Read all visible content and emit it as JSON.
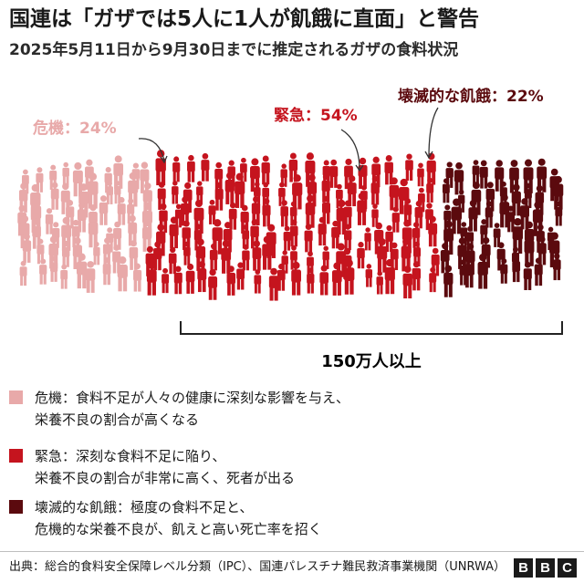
{
  "header": {
    "title": "国連は「ガザでは5人に1人が飢餓に直面」と警告",
    "subtitle": "2025年5月11日から9月30日までに推定されるガザの食料状況"
  },
  "chart_data": {
    "type": "pictogram",
    "total_label": "150万人以上",
    "categories": [
      {
        "key": "crisis",
        "label": "危機：24%",
        "value": 24,
        "color": "#e8a9a9"
      },
      {
        "key": "emergency",
        "label": "緊急：54%",
        "value": 54,
        "color": "#c5141e"
      },
      {
        "key": "catastrophe",
        "label": "壊滅的な飢餓：22%",
        "value": 22,
        "color": "#5b0a0e"
      }
    ]
  },
  "legend": {
    "items": [
      {
        "color": "#e8a9a9",
        "line1": "危機：食料不足が人々の健康に深刻な影響を与え、",
        "line2": "栄養不良の割合が高くなる"
      },
      {
        "color": "#c5141e",
        "line1": "緊急：深刻な食料不足に陥り、",
        "line2": "栄養不良の割合が非常に高く、死者が出る"
      },
      {
        "color": "#5b0a0e",
        "line1": "壊滅的な飢餓：極度の食料不足と、",
        "line2": "危機的な栄養不良が、飢えと高い死亡率を招く"
      }
    ]
  },
  "footer": {
    "source": "出典：総合的食料安全保障レベル分類（IPC）、国連パレスチナ難民救済事業機関（UNRWA）",
    "logo": [
      "B",
      "B",
      "C"
    ]
  }
}
